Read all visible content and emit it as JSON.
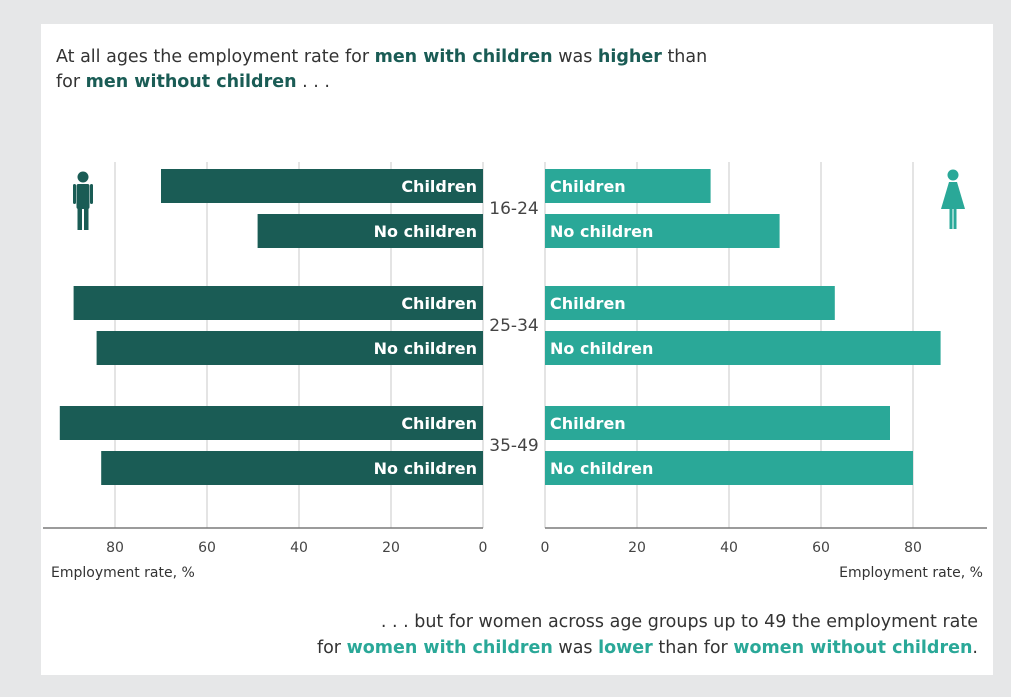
{
  "headline": {
    "part1": "At all ages the employment rate for ",
    "hl1": "men with children",
    "part2": " was ",
    "hl2": "higher",
    "part3": " than",
    "part4": "for ",
    "hl3": "men without children",
    "part5": " . . ."
  },
  "footnote": {
    "part1": ". . . but for women across age groups up to 49 the employment rate",
    "part2": "for ",
    "hl1": "women with children",
    "part3": " was ",
    "hl2": "lower",
    "part4": " than for ",
    "hl3": "women without children",
    "part5": "."
  },
  "colors": {
    "men": "#1a5c55",
    "women": "#2aa898",
    "grid": "#c9c9c9",
    "axis": "#7a7a7a"
  },
  "icons": {
    "men": "man-icon",
    "women": "woman-icon"
  },
  "chart_data": {
    "type": "bar",
    "orientation": "horizontal",
    "layout": "back-to-back",
    "categories": [
      "16-24",
      "25-34",
      "35-49"
    ],
    "panels": [
      {
        "name": "men",
        "direction": "left",
        "xlabel": "Employment rate, %",
        "xlim": [
          0,
          95
        ],
        "ticks": [
          80,
          60,
          40,
          20,
          0
        ],
        "series": [
          {
            "name": "Children",
            "values": [
              70,
              89,
              92
            ]
          },
          {
            "name": "No children",
            "values": [
              49,
              84,
              83
            ]
          }
        ]
      },
      {
        "name": "women",
        "direction": "right",
        "xlabel": "Employment rate, %",
        "xlim": [
          0,
          95
        ],
        "ticks": [
          0,
          20,
          40,
          60,
          80
        ],
        "series": [
          {
            "name": "Children",
            "values": [
              36,
              63,
              75
            ]
          },
          {
            "name": "No children",
            "values": [
              51,
              86,
              80
            ]
          }
        ]
      }
    ],
    "grid": true
  }
}
